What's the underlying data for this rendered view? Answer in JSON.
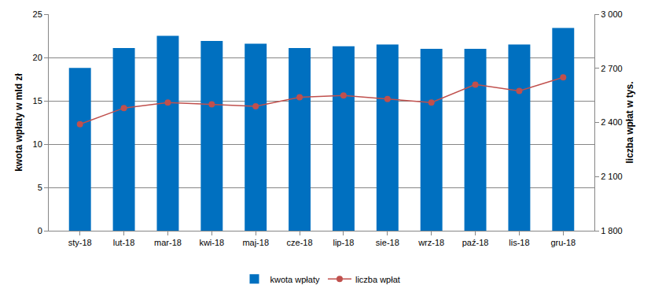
{
  "chart_data": {
    "type": "bar",
    "categories": [
      "sty-18",
      "lut-18",
      "mar-18",
      "kwi-18",
      "maj-18",
      "cze-18",
      "lip-18",
      "sie-18",
      "wrz-18",
      "paź-18",
      "lis-18",
      "gru-18"
    ],
    "series": [
      {
        "name": "kwota wpłaty",
        "type": "bar",
        "color": "#0070c0",
        "values": [
          18.8,
          21.1,
          22.5,
          21.9,
          21.6,
          21.1,
          21.3,
          21.5,
          21.0,
          21.0,
          21.5,
          23.4
        ]
      },
      {
        "name": "liczba wpłat",
        "type": "line",
        "axis": "y2",
        "color": "#c0504d",
        "marker": "circle",
        "values": [
          2390,
          2480,
          2510,
          2500,
          2490,
          2540,
          2550,
          2530,
          2510,
          2610,
          2575,
          2650
        ]
      }
    ],
    "y_label": "kwota wpłaty w mld zł",
    "y2_label": "liczba wpłat w tys.",
    "ylim": [
      0,
      25
    ],
    "yticks": [
      0,
      5,
      10,
      15,
      20,
      25
    ],
    "y2lim": [
      1800,
      3000
    ],
    "y2ticks": [
      {
        "value": 1800,
        "label": "1 800"
      },
      {
        "value": 2100,
        "label": "2 100"
      },
      {
        "value": 2400,
        "label": "2 400"
      },
      {
        "value": 2700,
        "label": "2 700"
      },
      {
        "value": 3000,
        "label": "3 000"
      }
    ],
    "grid": true,
    "legend": "bottom"
  }
}
